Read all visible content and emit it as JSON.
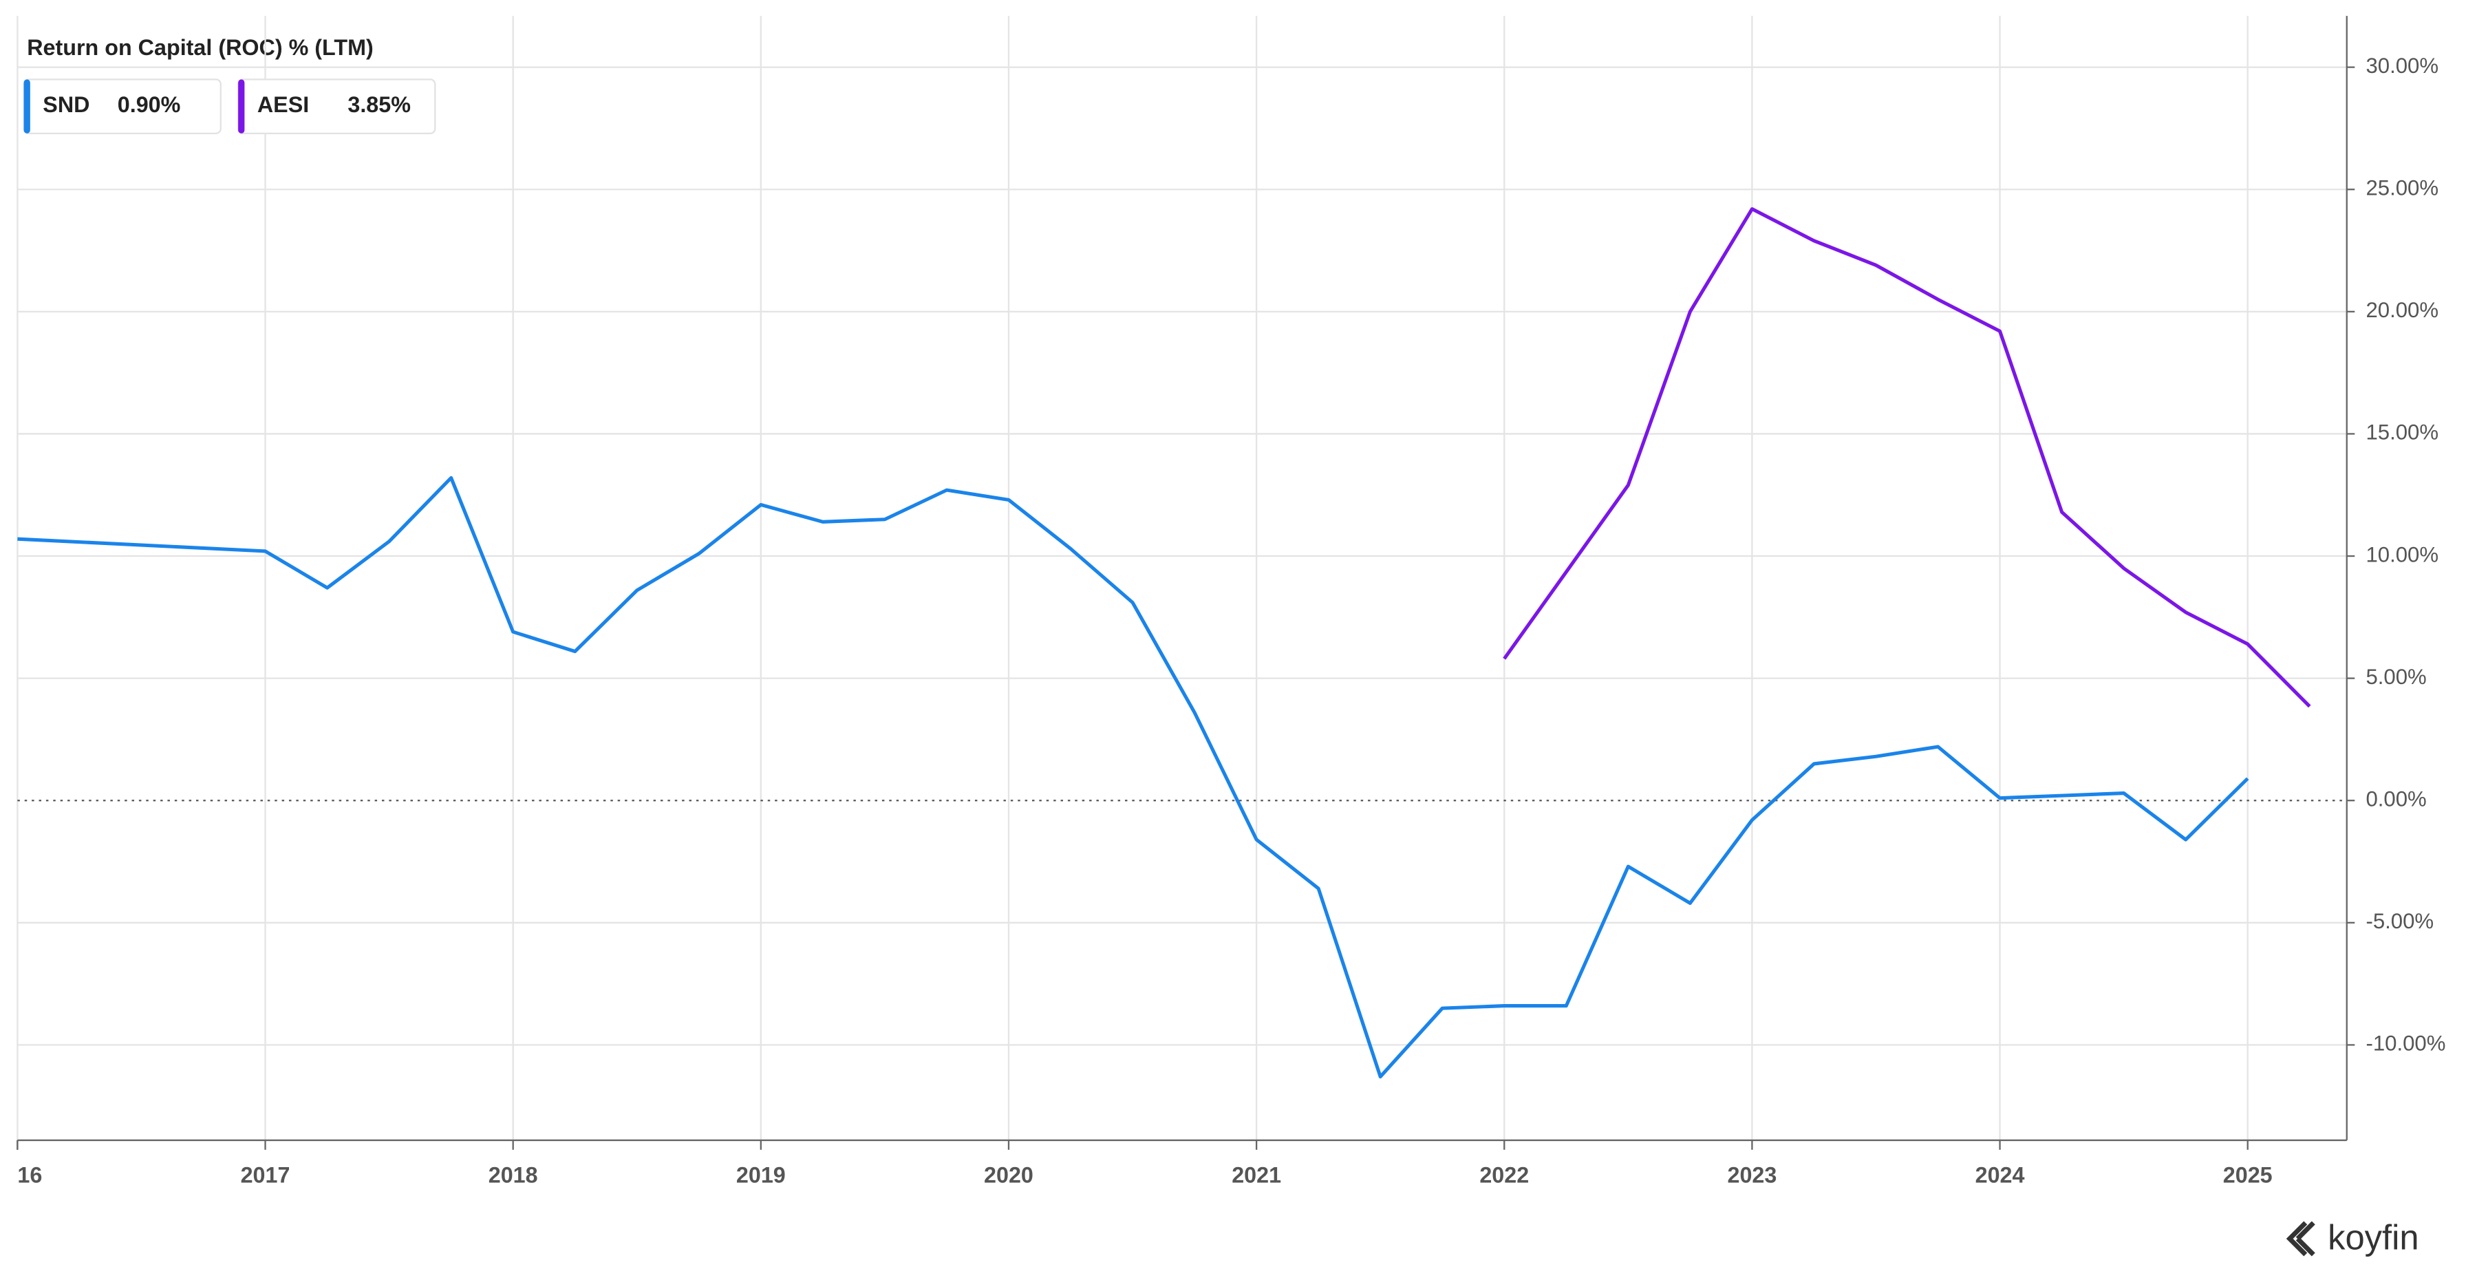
{
  "chart_data": {
    "type": "line",
    "title": "Return on Capital (ROC) % (LTM)",
    "brand": "koyfin",
    "xlim": [
      2016,
      2025.4
    ],
    "ylim": [
      -13.9,
      32.1
    ],
    "xticks": [
      {
        "value": 2016,
        "label": "16"
      },
      2017,
      2018,
      2019,
      2020,
      2021,
      2022,
      2023,
      2024,
      2025
    ],
    "yticks": [
      {
        "value": -10,
        "label": "-10.00%"
      },
      {
        "value": -5,
        "label": "-5.00%"
      },
      {
        "value": 0,
        "label": "0.00%"
      },
      {
        "value": 5,
        "label": "5.00%"
      },
      {
        "value": 10,
        "label": "10.00%"
      },
      {
        "value": 15,
        "label": "15.00%"
      },
      {
        "value": 20,
        "label": "20.00%"
      },
      {
        "value": 25,
        "label": "25.00%"
      },
      {
        "value": 30,
        "label": "30.00%"
      }
    ],
    "grid": true,
    "series": [
      {
        "name": "SND",
        "color": "#1a84ea",
        "last_label": "0.90%",
        "x": [
          2016,
          2017,
          2017.25,
          2017.5,
          2017.75,
          2018,
          2018.25,
          2018.5,
          2018.75,
          2019,
          2019.25,
          2019.5,
          2019.75,
          2020,
          2020.25,
          2020.5,
          2020.75,
          2021,
          2021.25,
          2021.5,
          2021.75,
          2022,
          2022.25,
          2022.5,
          2022.75,
          2023,
          2023.25,
          2023.5,
          2023.75,
          2024,
          2024.25,
          2024.5,
          2024.75,
          2025
        ],
        "values": [
          10.7,
          10.2,
          8.7,
          10.6,
          13.2,
          6.9,
          6.1,
          8.6,
          10.1,
          12.1,
          11.4,
          11.5,
          12.7,
          12.3,
          10.3,
          8.1,
          3.6,
          -1.6,
          -3.6,
          -11.3,
          -8.5,
          -8.4,
          -8.4,
          -2.7,
          -4.2,
          -0.8,
          1.5,
          1.8,
          2.2,
          0.1,
          0.2,
          0.3,
          -1.6,
          0.9
        ]
      },
      {
        "name": "AESI",
        "color": "#7b16e8",
        "last_label": "3.85%",
        "x": [
          2022,
          2022.5,
          2022.75,
          2023,
          2023.25,
          2023.5,
          2023.75,
          2024,
          2024.25,
          2024.5,
          2024.75,
          2025,
          2025.25
        ],
        "values": [
          5.8,
          12.9,
          20.0,
          24.2,
          22.9,
          21.9,
          20.5,
          19.2,
          11.8,
          9.5,
          7.7,
          6.4,
          3.85
        ]
      }
    ]
  }
}
